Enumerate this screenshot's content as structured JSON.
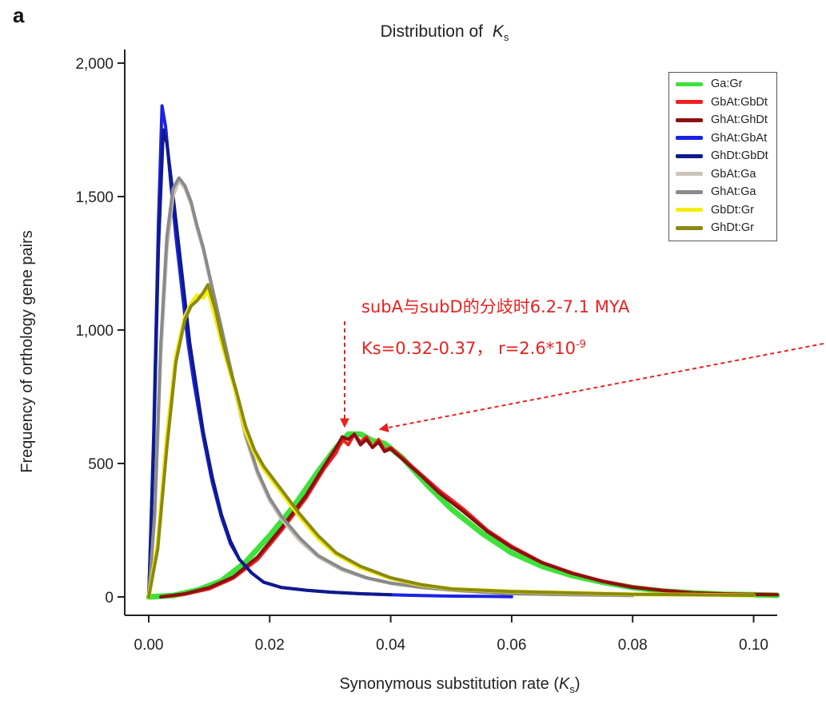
{
  "panel_label": "a",
  "annotations": {
    "divergence_text": "subA与subD的分歧时6.2-7.1 MYA",
    "ks_text": "Ks=0.32-0.37， r=2.6*10",
    "ks_exponent": "-9",
    "color": "#e8201f"
  },
  "chart_data": {
    "type": "line",
    "title": "Distribution of",
    "title_symbol": "K",
    "title_subscript": "s",
    "xlabel": "Synonymous substitution rate (",
    "xlabel_symbol": "K",
    "xlabel_subscript": "s",
    "xlabel_end": ")",
    "ylabel": "Frequency of orthology gene pairs",
    "xlim": [
      0.0,
      0.105
    ],
    "ylim": [
      -60,
      2080
    ],
    "x_ticks": [
      0.0,
      0.02,
      0.04,
      0.06,
      0.08,
      0.1
    ],
    "x_tick_labels": [
      "0.00",
      "0.02",
      "0.04",
      "0.06",
      "0.08",
      "0.10"
    ],
    "y_ticks": [
      0,
      500,
      1000,
      1500,
      2000
    ],
    "y_tick_labels": [
      "0",
      "500",
      "1,000",
      "1,500",
      "2,000"
    ],
    "grid": false,
    "legend_position": "top-right",
    "series": [
      {
        "name": "Ga:Gr",
        "color": "#3ee23a",
        "width": 7,
        "x": [
          0,
          0.004,
          0.008,
          0.012,
          0.016,
          0.02,
          0.024,
          0.028,
          0.031,
          0.033,
          0.035,
          0.037,
          0.039,
          0.042,
          0.046,
          0.05,
          0.055,
          0.06,
          0.065,
          0.07,
          0.075,
          0.08,
          0.085,
          0.09,
          0.095,
          0.1,
          0.105
        ],
        "y": [
          0,
          5,
          25,
          60,
          130,
          230,
          340,
          470,
          560,
          610,
          610,
          585,
          575,
          520,
          420,
          330,
          240,
          165,
          115,
          80,
          55,
          35,
          22,
          15,
          10,
          8,
          6
        ]
      },
      {
        "name": "GbAt:GbDt",
        "color": "#ee2121",
        "width": 4,
        "x": [
          0.002,
          0.006,
          0.01,
          0.014,
          0.018,
          0.022,
          0.026,
          0.029,
          0.031,
          0.032,
          0.033,
          0.034,
          0.035,
          0.036,
          0.037,
          0.038,
          0.039,
          0.04,
          0.042,
          0.045,
          0.048,
          0.052,
          0.056,
          0.06,
          0.065,
          0.07,
          0.075,
          0.08,
          0.085,
          0.09,
          0.095,
          0.1,
          0.105
        ],
        "y": [
          0,
          10,
          30,
          70,
          140,
          250,
          370,
          480,
          540,
          590,
          570,
          610,
          580,
          600,
          560,
          590,
          550,
          560,
          520,
          460,
          400,
          330,
          250,
          190,
          130,
          90,
          60,
          38,
          25,
          16,
          12,
          10,
          9
        ]
      },
      {
        "name": "GhAt:GhDt",
        "color": "#8c1010",
        "width": 4,
        "x": [
          0.002,
          0.006,
          0.01,
          0.014,
          0.018,
          0.022,
          0.026,
          0.029,
          0.031,
          0.032,
          0.033,
          0.034,
          0.035,
          0.036,
          0.037,
          0.038,
          0.039,
          0.04,
          0.042,
          0.045,
          0.048,
          0.052,
          0.056,
          0.06,
          0.065,
          0.07,
          0.075,
          0.08,
          0.085,
          0.09,
          0.095,
          0.1,
          0.105
        ],
        "y": [
          0,
          12,
          35,
          75,
          150,
          260,
          380,
          490,
          560,
          600,
          590,
          610,
          570,
          590,
          560,
          580,
          545,
          555,
          515,
          455,
          390,
          320,
          245,
          185,
          128,
          88,
          58,
          36,
          24,
          15,
          11,
          9,
          8
        ]
      },
      {
        "name": "GhAt:GbAt",
        "color": "#1a22e6",
        "width": 4,
        "x": [
          0,
          0.0008,
          0.0016,
          0.0022,
          0.0028,
          0.0036,
          0.0045,
          0.0055,
          0.0065,
          0.0075,
          0.009,
          0.0105,
          0.012,
          0.0135,
          0.015,
          0.017,
          0.019,
          0.022,
          0.026,
          0.03,
          0.035,
          0.04,
          0.045,
          0.05,
          0.055,
          0.06
        ],
        "y": [
          0,
          600,
          1400,
          1840,
          1760,
          1560,
          1350,
          1150,
          950,
          800,
          600,
          430,
          300,
          200,
          140,
          90,
          55,
          35,
          25,
          18,
          12,
          8,
          5,
          3,
          2,
          1
        ]
      },
      {
        "name": "GhDt:GbDt",
        "color": "#0f1a8c",
        "width": 4,
        "x": [
          0,
          0.0008,
          0.0016,
          0.0024,
          0.003,
          0.0038,
          0.0048,
          0.0058,
          0.0068,
          0.0078,
          0.009,
          0.0105,
          0.012,
          0.0135,
          0.015,
          0.017,
          0.019,
          0.022,
          0.026,
          0.03,
          0.035,
          0.04
        ],
        "y": [
          0,
          550,
          1300,
          1750,
          1700,
          1550,
          1350,
          1150,
          950,
          800,
          620,
          450,
          310,
          210,
          140,
          90,
          55,
          35,
          25,
          18,
          12,
          8
        ]
      },
      {
        "name": "GbAt:Ga",
        "color": "#cdc3b8",
        "width": 4,
        "x": [
          0,
          0.001,
          0.002,
          0.003,
          0.004,
          0.005,
          0.006,
          0.007,
          0.008,
          0.009,
          0.01,
          0.012,
          0.014,
          0.016,
          0.018,
          0.02,
          0.022,
          0.025,
          0.028,
          0.032,
          0.036,
          0.04,
          0.045,
          0.05,
          0.055,
          0.06,
          0.07,
          0.08
        ],
        "y": [
          0,
          300,
          900,
          1300,
          1500,
          1560,
          1530,
          1470,
          1380,
          1300,
          1200,
          1000,
          800,
          600,
          460,
          360,
          290,
          210,
          150,
          100,
          70,
          50,
          35,
          25,
          18,
          12,
          8,
          5
        ]
      },
      {
        "name": "GhAt:Ga",
        "color": "#8a8a8a",
        "width": 4,
        "x": [
          0,
          0.001,
          0.002,
          0.003,
          0.004,
          0.005,
          0.006,
          0.007,
          0.008,
          0.009,
          0.01,
          0.012,
          0.014,
          0.016,
          0.018,
          0.02,
          0.022,
          0.025,
          0.028,
          0.032,
          0.036,
          0.04,
          0.045,
          0.05,
          0.055,
          0.06,
          0.07,
          0.08
        ],
        "y": [
          0,
          320,
          950,
          1350,
          1530,
          1570,
          1540,
          1480,
          1390,
          1310,
          1210,
          1010,
          810,
          610,
          470,
          370,
          300,
          220,
          155,
          105,
          72,
          52,
          36,
          26,
          18,
          12,
          8,
          5
        ]
      },
      {
        "name": "GbDt:Gr",
        "color": "#f5ec11",
        "width": 5,
        "x": [
          0,
          0.0015,
          0.003,
          0.0045,
          0.006,
          0.007,
          0.008,
          0.009,
          0.0098,
          0.011,
          0.012,
          0.013,
          0.0145,
          0.016,
          0.0175,
          0.019,
          0.021,
          0.023,
          0.025,
          0.028,
          0.031,
          0.035,
          0.04,
          0.045,
          0.05,
          0.06,
          0.07,
          0.08,
          0.09,
          0.1
        ],
        "y": [
          0,
          200,
          600,
          900,
          1050,
          1100,
          1130,
          1120,
          1150,
          1050,
          960,
          880,
          760,
          620,
          540,
          480,
          420,
          360,
          300,
          220,
          160,
          110,
          70,
          45,
          30,
          20,
          15,
          10,
          8,
          6
        ]
      },
      {
        "name": "GhDt:Gr",
        "color": "#8a8a12",
        "width": 4,
        "x": [
          0,
          0.0015,
          0.003,
          0.0045,
          0.006,
          0.007,
          0.008,
          0.009,
          0.0098,
          0.011,
          0.012,
          0.013,
          0.0145,
          0.016,
          0.0175,
          0.019,
          0.021,
          0.023,
          0.025,
          0.028,
          0.031,
          0.035,
          0.04,
          0.045,
          0.05,
          0.06,
          0.07,
          0.08,
          0.09,
          0.1
        ],
        "y": [
          0,
          180,
          560,
          880,
          1040,
          1090,
          1110,
          1140,
          1170,
          1080,
          980,
          890,
          770,
          640,
          550,
          490,
          430,
          370,
          310,
          230,
          165,
          115,
          72,
          46,
          30,
          20,
          15,
          10,
          8,
          6
        ]
      }
    ]
  }
}
